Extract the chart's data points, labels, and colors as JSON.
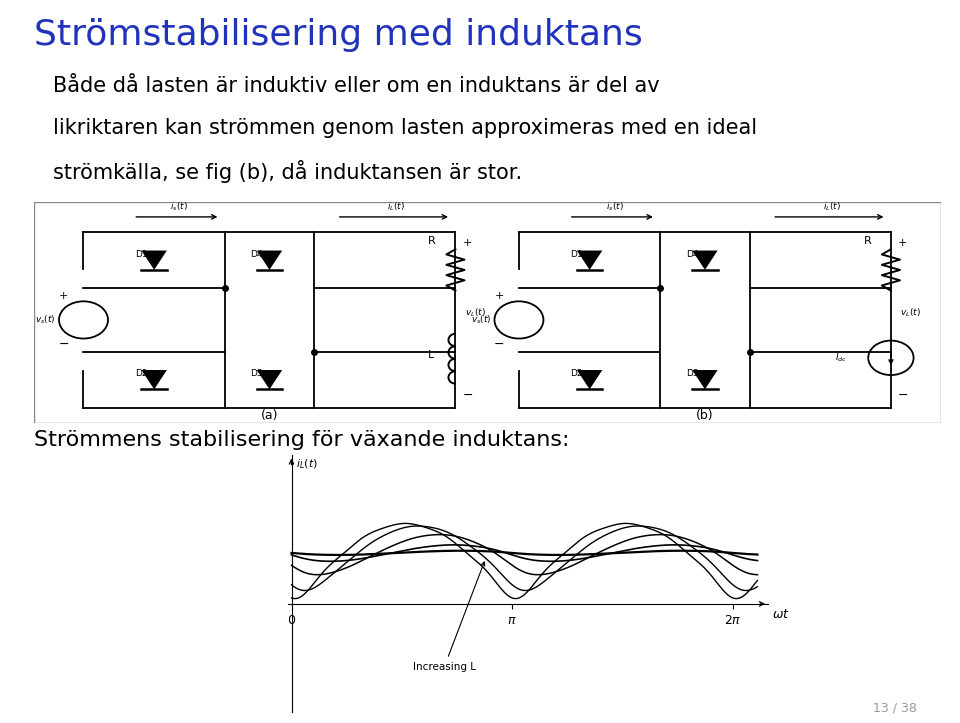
{
  "title": "Strömstabilisering med induktans",
  "title_color": "#2233bb",
  "body_lines": [
    "Både då lasten är induktiv eller om en induktans är del av",
    "likriktaren kan strömmen genom lasten approximeras med en ideal",
    "strömkälla, se fig (b), då induktansen är stor."
  ],
  "section2": "Strömmens stabilisering för växande induktans:",
  "page_number": "13 / 38",
  "bg_color": "#ffffff",
  "text_color": "#000000",
  "title_fontsize": 26,
  "body_fontsize": 15,
  "section2_fontsize": 16
}
